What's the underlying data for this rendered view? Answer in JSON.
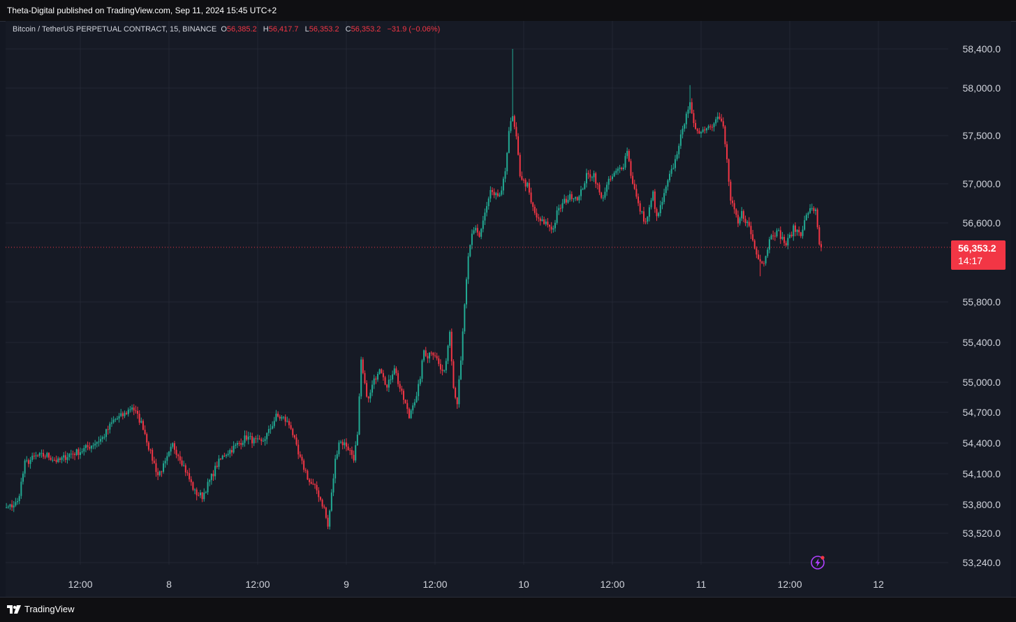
{
  "header": {
    "publisher_line": "Theta-Digital published on TradingView.com, Sep 11, 2024 15:45 UTC+2"
  },
  "legend": {
    "symbol": "Bitcoin / TetherUS PERPETUAL CONTRACT, 15, BINANCE",
    "o_label": "O",
    "o_value": "56,385.2",
    "h_label": "H",
    "h_value": "56,417.7",
    "l_label": "L",
    "l_value": "56,353.2",
    "c_label": "C",
    "c_value": "56,353.2",
    "change": "−31.9 (−0.06%)"
  },
  "current_price": {
    "price": "56,353.2",
    "countdown": "14:17",
    "color": "#f23645"
  },
  "footer": {
    "brand": "TradingView"
  },
  "colors": {
    "up": "#22ab94",
    "down": "#f23645",
    "background": "#161a25",
    "grid": "#232733",
    "axis_text": "#d1d4dc"
  },
  "chart_data": {
    "type": "candlestick",
    "symbol": "Bitcoin / TetherUS PERPETUAL CONTRACT",
    "interval": "15",
    "exchange": "BINANCE",
    "y_ticks": [
      {
        "label": "58,400.0",
        "value": 58400
      },
      {
        "label": "58,000.0",
        "value": 58000
      },
      {
        "label": "57,500.0",
        "value": 57500
      },
      {
        "label": "57,000.0",
        "value": 57000
      },
      {
        "label": "56,600.0",
        "value": 56600
      },
      {
        "label": "55,800.0",
        "value": 55800
      },
      {
        "label": "55,400.0",
        "value": 55400
      },
      {
        "label": "55,000.0",
        "value": 55000
      },
      {
        "label": "54,700.0",
        "value": 54700
      },
      {
        "label": "54,400.0",
        "value": 54400
      },
      {
        "label": "54,100.0",
        "value": 54100
      },
      {
        "label": "53,800.0",
        "value": 53800
      },
      {
        "label": "53,520.0",
        "value": 53520
      },
      {
        "label": "53,240.0",
        "value": 53240
      }
    ],
    "x_ticks": [
      {
        "label": ":00",
        "t": -96
      },
      {
        "label": "12:00",
        "t": -48
      },
      {
        "label": "8",
        "t": 0
      },
      {
        "label": "12:00",
        "t": 48
      },
      {
        "label": "9",
        "t": 96
      },
      {
        "label": "12:00",
        "t": 144
      },
      {
        "label": "10",
        "t": 192
      },
      {
        "label": "12:00",
        "t": 240
      },
      {
        "label": "11",
        "t": 288
      },
      {
        "label": "12:00",
        "t": 336
      },
      {
        "label": "12",
        "t": 384
      }
    ],
    "x_unit": "15-minute bars from Sep 8 00:00",
    "x_range": [
      -98,
      408
    ],
    "last_bar_t": 353,
    "close_anchors": [
      [
        -98,
        53920
      ],
      [
        -94,
        53800
      ],
      [
        -88,
        53760
      ],
      [
        -82,
        53820
      ],
      [
        -78,
        54200
      ],
      [
        -72,
        54270
      ],
      [
        -66,
        54280
      ],
      [
        -60,
        54220
      ],
      [
        -54,
        54290
      ],
      [
        -48,
        54320
      ],
      [
        -42,
        54380
      ],
      [
        -36,
        54450
      ],
      [
        -30,
        54620
      ],
      [
        -24,
        54680
      ],
      [
        -20,
        54760
      ],
      [
        -14,
        54560
      ],
      [
        -10,
        54300
      ],
      [
        -6,
        54090
      ],
      [
        -2,
        54200
      ],
      [
        2,
        54380
      ],
      [
        6,
        54260
      ],
      [
        10,
        54090
      ],
      [
        14,
        53920
      ],
      [
        18,
        53880
      ],
      [
        22,
        54030
      ],
      [
        26,
        54190
      ],
      [
        30,
        54290
      ],
      [
        34,
        54340
      ],
      [
        38,
        54400
      ],
      [
        42,
        54460
      ],
      [
        46,
        54420
      ],
      [
        50,
        54400
      ],
      [
        54,
        54510
      ],
      [
        58,
        54660
      ],
      [
        62,
        54640
      ],
      [
        66,
        54560
      ],
      [
        70,
        54280
      ],
      [
        74,
        54120
      ],
      [
        76,
        54020
      ],
      [
        80,
        53940
      ],
      [
        84,
        53760
      ],
      [
        86,
        53580
      ],
      [
        88,
        53900
      ],
      [
        90,
        54230
      ],
      [
        92,
        54420
      ],
      [
        96,
        54380
      ],
      [
        100,
        54260
      ],
      [
        102,
        54460
      ],
      [
        104,
        55200
      ],
      [
        106,
        54960
      ],
      [
        108,
        54820
      ],
      [
        110,
        54960
      ],
      [
        114,
        55160
      ],
      [
        116,
        55080
      ],
      [
        118,
        54940
      ],
      [
        122,
        55160
      ],
      [
        124,
        55000
      ],
      [
        126,
        54880
      ],
      [
        128,
        54780
      ],
      [
        130,
        54650
      ],
      [
        132,
        54800
      ],
      [
        134,
        54840
      ],
      [
        136,
        55060
      ],
      [
        138,
        55320
      ],
      [
        140,
        55260
      ],
      [
        142,
        55320
      ],
      [
        144,
        55280
      ],
      [
        146,
        55180
      ],
      [
        148,
        55080
      ],
      [
        150,
        55220
      ],
      [
        152,
        55540
      ],
      [
        154,
        54950
      ],
      [
        156,
        54800
      ],
      [
        158,
        55200
      ],
      [
        160,
        55780
      ],
      [
        162,
        56230
      ],
      [
        164,
        56480
      ],
      [
        166,
        56560
      ],
      [
        168,
        56460
      ],
      [
        170,
        56620
      ],
      [
        172,
        56760
      ],
      [
        174,
        56920
      ],
      [
        176,
        56860
      ],
      [
        180,
        56900
      ],
      [
        182,
        57140
      ],
      [
        184,
        57560
      ],
      [
        186,
        57690
      ],
      [
        188,
        57460
      ],
      [
        190,
        57100
      ],
      [
        192,
        57020
      ],
      [
        194,
        56980
      ],
      [
        196,
        56800
      ],
      [
        198,
        56700
      ],
      [
        200,
        56620
      ],
      [
        204,
        56600
      ],
      [
        208,
        56540
      ],
      [
        210,
        56700
      ],
      [
        214,
        56820
      ],
      [
        218,
        56880
      ],
      [
        222,
        56860
      ],
      [
        226,
        57080
      ],
      [
        230,
        57100
      ],
      [
        234,
        56840
      ],
      [
        238,
        57020
      ],
      [
        242,
        57120
      ],
      [
        246,
        57200
      ],
      [
        248,
        57360
      ],
      [
        250,
        57100
      ],
      [
        254,
        56780
      ],
      [
        258,
        56600
      ],
      [
        260,
        56740
      ],
      [
        262,
        56900
      ],
      [
        264,
        56640
      ],
      [
        268,
        56880
      ],
      [
        270,
        57020
      ],
      [
        274,
        57240
      ],
      [
        276,
        57420
      ],
      [
        278,
        57540
      ],
      [
        280,
        57760
      ],
      [
        282,
        57820
      ],
      [
        284,
        57600
      ],
      [
        288,
        57540
      ],
      [
        290,
        57580
      ],
      [
        294,
        57620
      ],
      [
        296,
        57700
      ],
      [
        298,
        57680
      ],
      [
        300,
        57580
      ],
      [
        302,
        57240
      ],
      [
        304,
        56820
      ],
      [
        306,
        56720
      ],
      [
        308,
        56580
      ],
      [
        310,
        56700
      ],
      [
        314,
        56560
      ],
      [
        318,
        56280
      ],
      [
        322,
        56200
      ],
      [
        326,
        56500
      ],
      [
        330,
        56500
      ],
      [
        334,
        56380
      ],
      [
        338,
        56540
      ],
      [
        342,
        56500
      ],
      [
        346,
        56720
      ],
      [
        350,
        56740
      ],
      [
        352,
        56400
      ],
      [
        353,
        56353.2
      ]
    ],
    "notable_wicks": [
      {
        "t": 186,
        "high": 58400
      },
      {
        "t": 282,
        "high": 58030
      },
      {
        "t": 86,
        "low": 53560
      },
      {
        "t": 320,
        "low": 56060
      }
    ],
    "last_close": 56353.2,
    "grid": true,
    "price_line": 56353.2
  }
}
